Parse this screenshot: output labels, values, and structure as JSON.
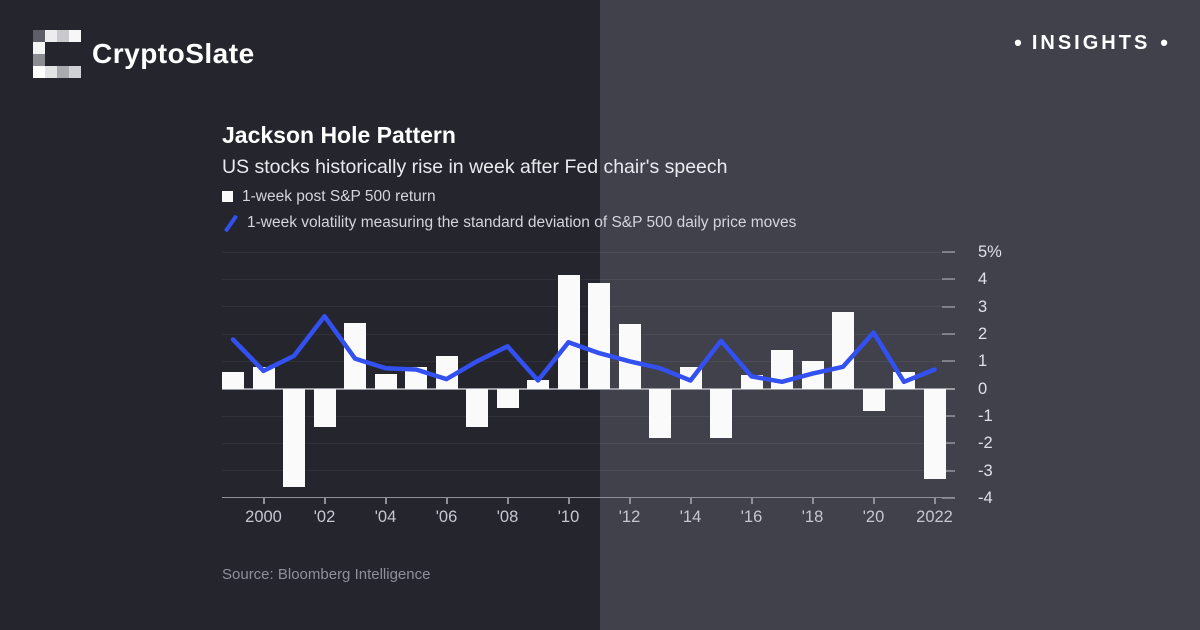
{
  "header": {
    "brand": "CryptoSlate",
    "badge": "INSIGHTS",
    "bullet": "•"
  },
  "logo_pixels": [
    [
      "#5e5e66",
      "#ededef",
      "#c9c9cd",
      "#f7f7f8"
    ],
    [
      "#f4f4f5",
      "",
      "",
      ""
    ],
    [
      "#8b8b92",
      "",
      "",
      ""
    ],
    [
      "#ffffff",
      "#e3e3e6",
      "#a9a9b0",
      "#cfcfd4"
    ]
  ],
  "colors": {
    "bg_left": "#25252d",
    "bg_right": "#41414c",
    "bar": "#fafafa",
    "line": "#3350f0",
    "zero_axis": "#9b9ba3",
    "text_primary": "#ffffff",
    "text_secondary": "#d4d4dc",
    "text_muted": "#8f8f9b"
  },
  "chart_data": {
    "type": "bar",
    "title": "Jackson Hole Pattern",
    "subtitle": "US stocks historically rise in week after Fed chair's speech",
    "source": "Source: Bloomberg Intelligence",
    "legend": [
      {
        "label": "1-week post S&P 500 return",
        "marker": "square",
        "color": "#fafafa"
      },
      {
        "label": "1-week volatility measuring the standard deviation of S&P 500 daily price moves",
        "marker": "slash",
        "color": "#3350f0"
      }
    ],
    "years": [
      1999,
      2000,
      2001,
      2002,
      2003,
      2004,
      2005,
      2006,
      2007,
      2008,
      2009,
      2010,
      2011,
      2012,
      2013,
      2014,
      2015,
      2016,
      2017,
      2018,
      2019,
      2020,
      2021,
      2022
    ],
    "series": [
      {
        "name": "1-week post S&P 500 return",
        "type": "bar",
        "values": [
          0.6,
          0.8,
          -3.6,
          -1.4,
          2.4,
          0.55,
          0.8,
          1.2,
          -1.4,
          -0.7,
          0.3,
          4.15,
          3.85,
          2.35,
          -1.8,
          0.8,
          -1.8,
          0.5,
          1.4,
          1.0,
          2.8,
          -0.8,
          0.6,
          -3.3
        ]
      },
      {
        "name": "1-week volatility measuring the standard deviation of S&P 500 daily price moves",
        "type": "line",
        "values": [
          1.8,
          0.65,
          1.2,
          2.65,
          1.1,
          0.75,
          0.7,
          0.35,
          1.0,
          1.55,
          0.3,
          1.7,
          1.3,
          1.0,
          0.75,
          0.3,
          1.75,
          0.45,
          0.25,
          0.55,
          0.8,
          2.05,
          0.25,
          0.7
        ]
      }
    ],
    "ylim": [
      -4,
      5
    ],
    "y_ticks": [
      {
        "label": "5%",
        "value": 5
      },
      {
        "label": "4",
        "value": 4
      },
      {
        "label": "3",
        "value": 3
      },
      {
        "label": "2",
        "value": 2
      },
      {
        "label": "1",
        "value": 1
      },
      {
        "label": "0",
        "value": 0
      },
      {
        "label": "-1",
        "value": -1
      },
      {
        "label": "-2",
        "value": -2
      },
      {
        "label": "-3",
        "value": -3
      },
      {
        "label": "-4",
        "value": -4
      }
    ],
    "x_ticks": [
      {
        "label": "2000",
        "year": 2000
      },
      {
        "label": "'02",
        "year": 2002
      },
      {
        "label": "'04",
        "year": 2004
      },
      {
        "label": "'06",
        "year": 2006
      },
      {
        "label": "'08",
        "year": 2008
      },
      {
        "label": "'10",
        "year": 2010
      },
      {
        "label": "'12",
        "year": 2012
      },
      {
        "label": "'14",
        "year": 2014
      },
      {
        "label": "'16",
        "year": 2016
      },
      {
        "label": "'18",
        "year": 2018
      },
      {
        "label": "'20",
        "year": 2020
      },
      {
        "label": "2022",
        "year": 2022
      }
    ],
    "grid": true,
    "legend_position": "top-left"
  }
}
